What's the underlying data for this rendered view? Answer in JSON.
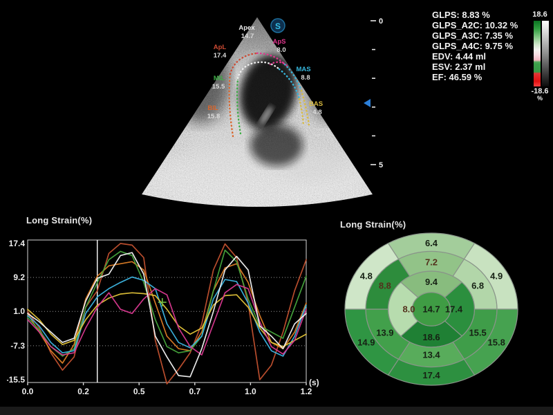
{
  "ultrasound": {
    "logo_letter": "S",
    "depth_scale": {
      "top_label": "0",
      "bottom_label": "5"
    },
    "segments": [
      {
        "label": "Apex",
        "value": "14.7",
        "color": "#e9e9e9"
      },
      {
        "label": "ApS",
        "value": "8.0",
        "color": "#e0368e"
      },
      {
        "label": "ApL",
        "value": "17.4",
        "color": "#cc4a33"
      },
      {
        "label": "MAS",
        "value": "8.8",
        "color": "#36b6dc"
      },
      {
        "label": "MIL",
        "value": "15.5",
        "color": "#3fae46"
      },
      {
        "label": "BIL",
        "value": "15.8",
        "color": "#d9652a"
      },
      {
        "label": "BAS",
        "value": "4.8",
        "color": "#d9bb3f"
      }
    ]
  },
  "measurements": {
    "lines": [
      "GLPS: 8.83 %",
      "GLPS_A2C: 10.32 %",
      "GLPS_A3C: 7.35 %",
      "GLPS_A4C: 9.75 %",
      "EDV: 4.44 ml",
      "ESV: 2.37 ml",
      "EF: 46.59 %"
    ]
  },
  "colorbar": {
    "max": "18.6",
    "min": "-18.6",
    "unit": "%"
  },
  "chart_data": [
    {
      "type": "line",
      "title": "Long Strain(%)",
      "xlabel": "(s)",
      "ylabel": "Long Strain(%)",
      "xlim": [
        0,
        1.2
      ],
      "ylim": [
        -15.5,
        17.4
      ],
      "y_ticks": [
        17.4,
        9.2,
        1.0,
        -7.3,
        -15.5
      ],
      "grid_values": [
        9.2,
        1.0,
        -7.3
      ],
      "x_tick_times": [
        0,
        0.24,
        0.48,
        0.72,
        0.96,
        1.2
      ],
      "x_tick_labels": [
        "0.0",
        "0.2",
        "0.5",
        "0.7",
        "1.0",
        "1.2"
      ],
      "event_line_t": 0.3,
      "cursor": {
        "t": 0.58,
        "v": 3.2,
        "color": "#74c044"
      },
      "sample_step": 0.05,
      "series": [
        {
          "name": "ApL",
          "color": "#c2512f",
          "values": [
            1,
            -3,
            -9,
            -13.2,
            -10,
            2,
            6,
            15,
            17.4,
            17,
            14,
            -6,
            -16.5,
            -13,
            -9,
            -2,
            11,
            17.3,
            14,
            3,
            -15.5,
            -12,
            -4,
            6,
            13.5
          ]
        },
        {
          "name": "BIL",
          "color": "#dd7d26",
          "values": [
            0.5,
            -4,
            -8.5,
            -11.5,
            -7,
            4,
            9.5,
            12,
            12.5,
            13,
            11,
            3,
            -5,
            -8,
            -8.5,
            -4,
            6,
            11.5,
            12.5,
            8,
            0,
            -6.5,
            -8,
            -4,
            3
          ]
        },
        {
          "name": "MIL",
          "color": "#46a53c",
          "values": [
            -0.5,
            -3.5,
            -7.5,
            -9.8,
            -8,
            2,
            8,
            13.5,
            15.5,
            14.5,
            8,
            -1,
            -7.5,
            -9,
            -8.5,
            -5,
            6,
            15.8,
            13,
            4,
            -2.5,
            -4,
            -5.5,
            2,
            9.5
          ]
        },
        {
          "name": "MAS",
          "color": "#3cb4e0",
          "values": [
            0,
            -2.5,
            -6.5,
            -9,
            -8.5,
            0.5,
            4.5,
            6.5,
            8,
            9.3,
            8.5,
            6.5,
            -2,
            -6.5,
            -7.8,
            -5,
            4,
            8.7,
            8.2,
            3,
            -4,
            -8.5,
            -9.8,
            -5,
            2.5
          ]
        },
        {
          "name": "BAS",
          "color": "#e2c338",
          "values": [
            1.5,
            -1,
            -4.5,
            -7,
            -6,
            -1,
            2.5,
            4.2,
            5.2,
            5.5,
            5.3,
            4.8,
            1.5,
            -2.5,
            -4.5,
            -3,
            2.5,
            4.8,
            5,
            2,
            -3,
            -6.5,
            -7.5,
            -6,
            -4.5
          ]
        },
        {
          "name": "ApS",
          "color": "#d8388f",
          "values": [
            -1,
            -4,
            -7.5,
            -9.5,
            -9,
            -3,
            2,
            5.5,
            1.5,
            0.5,
            4,
            6.5,
            5,
            -3,
            -7.5,
            -9.5,
            -2,
            5.5,
            7.5,
            6.5,
            -1.5,
            -7.5,
            -9.3,
            -6,
            1.5
          ]
        },
        {
          "name": "Apex",
          "color": "#f2f2f2",
          "values": [
            0.5,
            -1.5,
            -4,
            -6.5,
            -5.5,
            3.5,
            9,
            10,
            14.5,
            15.2,
            10,
            -5,
            -10,
            -14.5,
            -14.8,
            -8,
            1,
            11,
            14.3,
            11,
            -2.5,
            -5,
            -8,
            -2,
            0.5
          ]
        }
      ]
    },
    {
      "type": "heatmap",
      "layout": "bullseye",
      "title": "Long Strain(%)",
      "stroke": "#8a948a",
      "center": {
        "value": "14.7",
        "color": "#3f9c44"
      },
      "rings": [
        {
          "name": "inner",
          "segments": [
            {
              "v": "9.4",
              "c": "#88bc7e"
            },
            {
              "v": "17.4",
              "c": "#2b8f3e"
            },
            {
              "v": "18.6",
              "c": "#1f8034"
            },
            {
              "v": "8.0",
              "c": "#b7dcae",
              "tc": "#53301c"
            }
          ]
        },
        {
          "name": "middle",
          "segments": [
            {
              "v": "7.2",
              "c": "#92c388",
              "tc": "#53301c"
            },
            {
              "v": "6.8",
              "c": "#b2d6a9"
            },
            {
              "v": "15.5",
              "c": "#3f9d49"
            },
            {
              "v": "13.4",
              "c": "#58ac5b"
            },
            {
              "v": "13.9",
              "c": "#42a04b"
            },
            {
              "v": "8.8",
              "c": "#2d8c3c",
              "tc": "#53301c"
            }
          ]
        },
        {
          "name": "outer",
          "segments": [
            {
              "v": "6.4",
              "c": "#a3cd9b"
            },
            {
              "v": "4.9",
              "c": "#c8e2c0"
            },
            {
              "v": "15.8",
              "c": "#46a250"
            },
            {
              "v": "17.4",
              "c": "#2d9040"
            },
            {
              "v": "14.9",
              "c": "#2f9543"
            },
            {
              "v": "4.8",
              "c": "#cfe6c8"
            }
          ]
        }
      ]
    }
  ]
}
